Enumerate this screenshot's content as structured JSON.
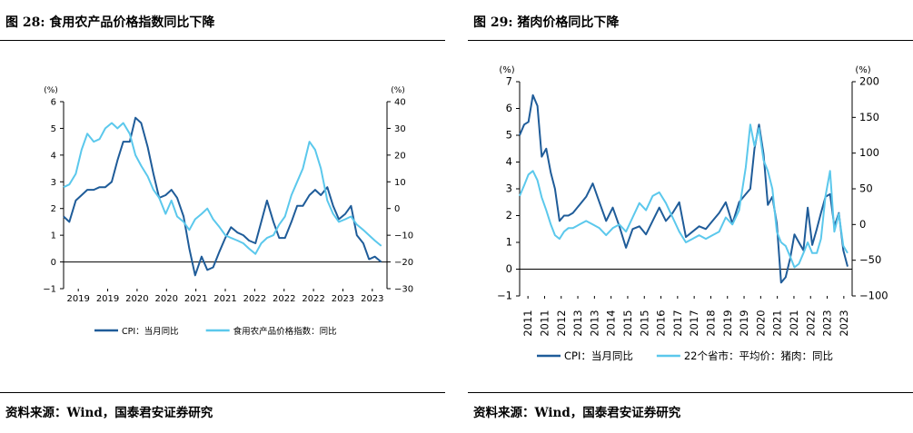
{
  "figures": [
    {
      "title": "图 28: 食用农产品价格指数同比下降",
      "source": "资料来源：Wind，国泰君安证券研究"
    },
    {
      "title": "图 29: 猪肉价格同比下降",
      "source": "资料来源：Wind，国泰君安证券研究"
    }
  ],
  "chart_data": [
    {
      "type": "line",
      "left_axis": {
        "unit": "(%)",
        "ylim": [
          -1,
          6
        ],
        "ticks": [
          -1,
          0,
          1,
          2,
          3,
          4,
          5,
          6
        ]
      },
      "right_axis": {
        "unit": "(%)",
        "ylim": [
          -30,
          40
        ],
        "ticks": [
          -30,
          -20,
          -10,
          0,
          10,
          20,
          30,
          40
        ]
      },
      "x_ticks": [
        "2019",
        "2019",
        "2020",
        "2020",
        "2021",
        "2021",
        "2022",
        "2022",
        "2022",
        "2023",
        "2023"
      ],
      "x_range": [
        2019.0,
        2023.5
      ],
      "grid": false,
      "legend_position": "bottom",
      "colors": {
        "series1": "#1f5c99",
        "series2": "#5bc8ec"
      },
      "series": [
        {
          "name": "CPI：当月同比",
          "axis": "left",
          "x": [
            2019.0,
            2019.08,
            2019.17,
            2019.25,
            2019.33,
            2019.42,
            2019.5,
            2019.58,
            2019.67,
            2019.75,
            2019.83,
            2019.92,
            2020.0,
            2020.08,
            2020.17,
            2020.25,
            2020.33,
            2020.42,
            2020.5,
            2020.58,
            2020.67,
            2020.75,
            2020.83,
            2020.92,
            2021.0,
            2021.08,
            2021.17,
            2021.25,
            2021.33,
            2021.42,
            2021.5,
            2021.58,
            2021.67,
            2021.75,
            2021.83,
            2021.92,
            2022.0,
            2022.08,
            2022.17,
            2022.25,
            2022.33,
            2022.42,
            2022.5,
            2022.58,
            2022.67,
            2022.75,
            2022.83,
            2022.92,
            2023.0,
            2023.08,
            2023.17,
            2023.25,
            2023.33,
            2023.42
          ],
          "values": [
            1.7,
            1.5,
            2.3,
            2.5,
            2.7,
            2.7,
            2.8,
            2.8,
            3.0,
            3.8,
            4.5,
            4.5,
            5.4,
            5.2,
            4.3,
            3.3,
            2.4,
            2.5,
            2.7,
            2.4,
            1.7,
            0.5,
            -0.5,
            0.2,
            -0.3,
            -0.2,
            0.4,
            0.9,
            1.3,
            1.1,
            1.0,
            0.8,
            0.7,
            1.5,
            2.3,
            1.5,
            0.9,
            0.9,
            1.5,
            2.1,
            2.1,
            2.5,
            2.7,
            2.5,
            2.8,
            2.1,
            1.6,
            1.8,
            2.1,
            1.0,
            0.7,
            0.1,
            0.2,
            0.0
          ]
        },
        {
          "name": "食用农产品价格指数：同比",
          "axis": "right",
          "x": [
            2019.0,
            2019.08,
            2019.17,
            2019.25,
            2019.33,
            2019.42,
            2019.5,
            2019.58,
            2019.67,
            2019.75,
            2019.83,
            2019.92,
            2020.0,
            2020.08,
            2020.17,
            2020.25,
            2020.33,
            2020.42,
            2020.5,
            2020.58,
            2020.67,
            2020.75,
            2020.83,
            2020.92,
            2021.0,
            2021.08,
            2021.17,
            2021.25,
            2021.33,
            2021.42,
            2021.5,
            2021.58,
            2021.67,
            2021.75,
            2021.83,
            2021.92,
            2022.0,
            2022.08,
            2022.17,
            2022.25,
            2022.33,
            2022.42,
            2022.5,
            2022.58,
            2022.67,
            2022.75,
            2022.83,
            2022.92,
            2023.0,
            2023.08,
            2023.17,
            2023.25,
            2023.33,
            2023.42
          ],
          "values": [
            8,
            9,
            13,
            22,
            28,
            25,
            26,
            30,
            32,
            30,
            32,
            28,
            20,
            16,
            12,
            7,
            4,
            -2,
            3,
            -3,
            -5,
            -8,
            -4,
            -2,
            0,
            -4,
            -7,
            -10,
            -11,
            -12,
            -13,
            -15,
            -17,
            -13,
            -11,
            -10,
            -6,
            -3,
            5,
            10,
            15,
            25,
            22,
            15,
            3,
            -2,
            -5,
            -4,
            -3,
            -6,
            -8,
            -10,
            -12,
            -14
          ]
        }
      ]
    },
    {
      "type": "line",
      "left_axis": {
        "unit": "(%)",
        "ylim": [
          -1,
          7
        ],
        "ticks": [
          -1,
          0,
          1,
          2,
          3,
          4,
          5,
          6,
          7
        ]
      },
      "right_axis": {
        "unit": "(%)",
        "ylim": [
          -100,
          200
        ],
        "ticks": [
          -100,
          -50,
          0,
          50,
          100,
          150,
          200
        ]
      },
      "x_ticks": [
        "2011",
        "2011",
        "2012",
        "2013",
        "2013",
        "2014",
        "2015",
        "2015",
        "2016",
        "2017",
        "2017",
        "2018",
        "2019",
        "2019",
        "2020",
        "2021",
        "2021",
        "2022",
        "2023",
        "2023"
      ],
      "x_range": [
        2011.0,
        2023.5
      ],
      "grid": false,
      "legend_position": "bottom",
      "colors": {
        "series1": "#1f5c99",
        "series2": "#5bc8ec"
      },
      "series": [
        {
          "name": "CPI：当月同比",
          "axis": "left",
          "x": [
            2011.0,
            2011.17,
            2011.33,
            2011.5,
            2011.67,
            2011.83,
            2012.0,
            2012.17,
            2012.33,
            2012.5,
            2012.67,
            2012.83,
            2013.0,
            2013.25,
            2013.5,
            2013.75,
            2014.0,
            2014.25,
            2014.5,
            2014.75,
            2015.0,
            2015.25,
            2015.5,
            2015.75,
            2016.0,
            2016.25,
            2016.5,
            2016.75,
            2017.0,
            2017.25,
            2017.5,
            2017.75,
            2018.0,
            2018.25,
            2018.5,
            2018.75,
            2019.0,
            2019.25,
            2019.5,
            2019.67,
            2019.83,
            2020.0,
            2020.17,
            2020.33,
            2020.5,
            2020.67,
            2020.83,
            2021.0,
            2021.17,
            2021.33,
            2021.5,
            2021.67,
            2021.83,
            2022.0,
            2022.17,
            2022.33,
            2022.5,
            2022.67,
            2022.83,
            2023.0,
            2023.17,
            2023.33
          ],
          "values": [
            5.0,
            5.4,
            5.5,
            6.5,
            6.1,
            4.2,
            4.5,
            3.6,
            3.0,
            1.8,
            2.0,
            2.0,
            2.1,
            2.4,
            2.7,
            3.2,
            2.5,
            1.8,
            2.3,
            1.6,
            0.8,
            1.5,
            1.6,
            1.3,
            1.8,
            2.3,
            1.8,
            2.1,
            2.5,
            1.2,
            1.4,
            1.6,
            1.5,
            1.8,
            2.1,
            2.5,
            1.7,
            2.5,
            2.8,
            3.0,
            4.5,
            5.4,
            4.3,
            2.4,
            2.7,
            1.7,
            -0.5,
            -0.3,
            0.4,
            1.3,
            1.0,
            0.7,
            2.3,
            0.9,
            1.5,
            2.1,
            2.7,
            2.8,
            1.6,
            2.1,
            0.7,
            0.1
          ]
        },
        {
          "name": "22个省市：平均价：猪肉：同比",
          "axis": "right",
          "x": [
            2011.0,
            2011.17,
            2011.33,
            2011.5,
            2011.67,
            2011.83,
            2012.0,
            2012.17,
            2012.33,
            2012.5,
            2012.67,
            2012.83,
            2013.0,
            2013.25,
            2013.5,
            2013.75,
            2014.0,
            2014.25,
            2014.5,
            2014.75,
            2015.0,
            2015.25,
            2015.5,
            2015.75,
            2016.0,
            2016.25,
            2016.5,
            2016.75,
            2017.0,
            2017.25,
            2017.5,
            2017.75,
            2018.0,
            2018.25,
            2018.5,
            2018.75,
            2019.0,
            2019.25,
            2019.5,
            2019.67,
            2019.83,
            2020.0,
            2020.17,
            2020.33,
            2020.5,
            2020.67,
            2020.83,
            2021.0,
            2021.17,
            2021.33,
            2021.5,
            2021.67,
            2021.83,
            2022.0,
            2022.17,
            2022.33,
            2022.5,
            2022.67,
            2022.83,
            2023.0,
            2023.17,
            2023.33
          ],
          "values": [
            40,
            55,
            70,
            75,
            62,
            38,
            20,
            0,
            -15,
            -20,
            -10,
            -5,
            -5,
            0,
            5,
            0,
            -5,
            -15,
            -5,
            0,
            -10,
            10,
            30,
            20,
            40,
            45,
            30,
            10,
            -10,
            -25,
            -20,
            -15,
            -20,
            -15,
            -10,
            10,
            0,
            20,
            80,
            140,
            110,
            135,
            90,
            75,
            50,
            -10,
            -25,
            -30,
            -45,
            -60,
            -55,
            -40,
            -25,
            -40,
            -40,
            -20,
            40,
            75,
            -10,
            15,
            -30,
            -40
          ]
        }
      ]
    }
  ]
}
